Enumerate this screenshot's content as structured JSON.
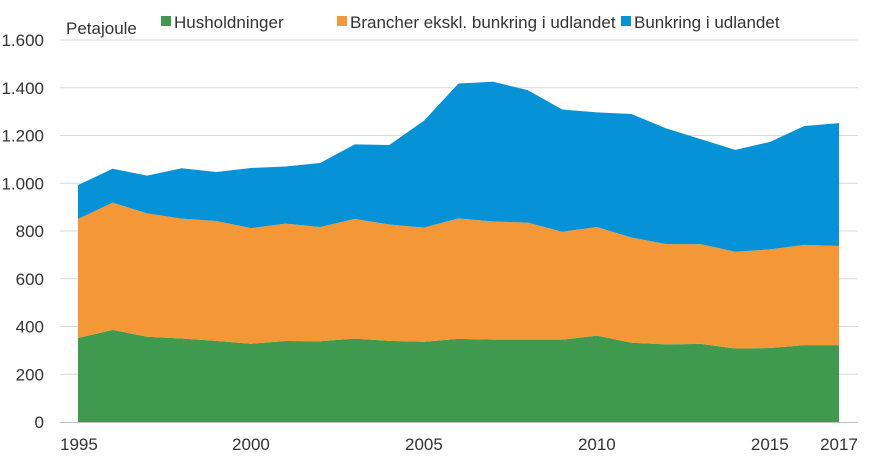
{
  "chart_data": {
    "type": "area",
    "stacked": true,
    "unit_label": "Petajoule",
    "x": [
      1995,
      1996,
      1997,
      1998,
      1999,
      2000,
      2001,
      2002,
      2003,
      2004,
      2005,
      2006,
      2007,
      2008,
      2009,
      2010,
      2011,
      2012,
      2013,
      2014,
      2015,
      2016,
      2017
    ],
    "x_tick_labels": [
      "1995",
      "2000",
      "2005",
      "2010",
      "2015",
      "2017"
    ],
    "x_tick_values": [
      1995,
      2000,
      2005,
      2010,
      2015,
      2017
    ],
    "y_tick_labels": [
      "0",
      "200",
      "400",
      "600",
      "800",
      "1.000",
      "1.200",
      "1.400",
      "1.600"
    ],
    "y_tick_values": [
      0,
      200,
      400,
      600,
      800,
      1000,
      1200,
      1400,
      1600
    ],
    "ylim": [
      0,
      1600
    ],
    "grid": true,
    "legend_position": "top",
    "series": [
      {
        "name": "Husholdninger",
        "color": "#3f9a4f",
        "values": [
          352,
          386,
          357,
          350,
          340,
          328,
          339,
          338,
          349,
          340,
          336,
          348,
          345,
          345,
          345,
          362,
          332,
          325,
          327,
          308,
          310,
          322,
          322
        ]
      },
      {
        "name": "Brancher ekskl. bunkring i udlandet",
        "color": "#f39737",
        "values": [
          498,
          533,
          517,
          502,
          502,
          484,
          492,
          479,
          502,
          487,
          478,
          505,
          495,
          490,
          452,
          455,
          441,
          420,
          418,
          405,
          413,
          420,
          415
        ]
      },
      {
        "name": "Bunkring i udlandet",
        "color": "#0592d6",
        "values": [
          142,
          142,
          158,
          211,
          205,
          252,
          239,
          268,
          312,
          333,
          448,
          565,
          585,
          555,
          512,
          480,
          517,
          485,
          440,
          427,
          450,
          498,
          515
        ]
      }
    ]
  }
}
